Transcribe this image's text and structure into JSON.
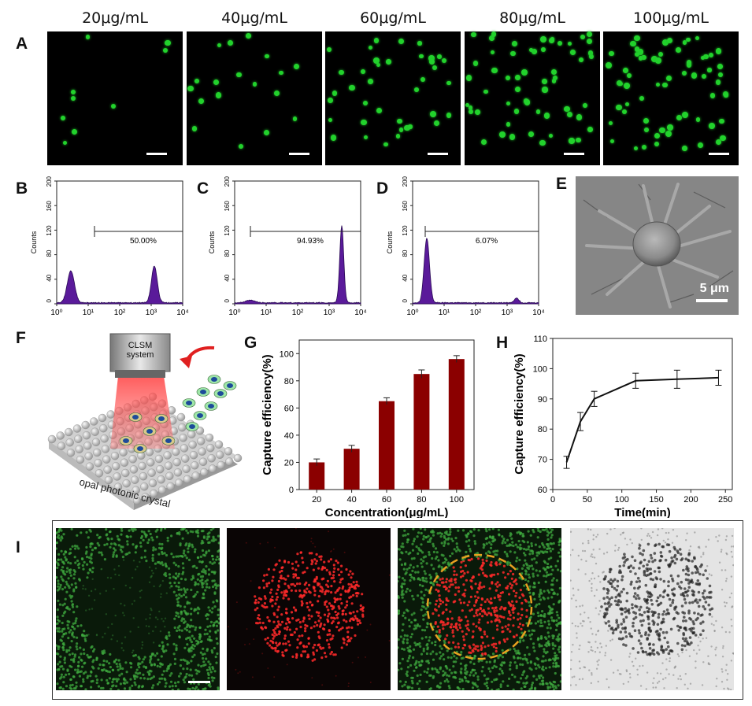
{
  "panel_labels": {
    "A": "A",
    "B": "B",
    "C": "C",
    "D": "D",
    "E": "E",
    "F": "F",
    "G": "G",
    "H": "H",
    "I": "I"
  },
  "panel_a": {
    "concentrations": [
      "20μg/mL",
      "40μg/mL",
      "60μg/mL",
      "80μg/mL",
      "100μg/mL"
    ]
  },
  "flow": {
    "ylabel": "Counts",
    "y_ticks": [
      "0",
      "40",
      "80",
      "120",
      "160",
      "200"
    ],
    "x_ticks": [
      "10⁰",
      "10¹",
      "10²",
      "10³",
      "10⁴"
    ],
    "B": {
      "gate_label": "50.00%"
    },
    "C": {
      "gate_label": "94.93%"
    },
    "D": {
      "gate_label": "6.07%"
    }
  },
  "sem": {
    "scale_label": "5 μm"
  },
  "schematic": {
    "system_label_1": "CLSM",
    "system_label_2": "system",
    "crystal_label": "opal photonic crystal"
  },
  "chart_data": [
    {
      "type": "bar",
      "panel": "G",
      "categories": [
        "20",
        "40",
        "60",
        "80",
        "100"
      ],
      "values": [
        20,
        30,
        65,
        85,
        96
      ],
      "errors": [
        2.5,
        2.5,
        2.5,
        3,
        2.5
      ],
      "xlabel": "Concentration(μg/mL)",
      "ylabel": "Capture efficiency(%)",
      "ylim": [
        0,
        110
      ],
      "y_ticks": [
        0,
        20,
        40,
        60,
        80,
        100
      ],
      "bar_color": "#8b0000"
    },
    {
      "type": "line",
      "panel": "H",
      "x": [
        20,
        40,
        60,
        120,
        180,
        240
      ],
      "y": [
        69,
        82.5,
        90,
        96,
        96.5,
        97
      ],
      "errors": [
        2,
        3,
        2.5,
        2.5,
        3,
        2.5
      ],
      "xlabel": "Time(min)",
      "ylabel": "Capture efficiency(%)",
      "xlim": [
        0,
        260
      ],
      "ylim": [
        60,
        110
      ],
      "x_ticks": [
        0,
        50,
        100,
        150,
        200,
        250
      ],
      "y_ticks": [
        60,
        70,
        80,
        90,
        100,
        110
      ]
    }
  ]
}
